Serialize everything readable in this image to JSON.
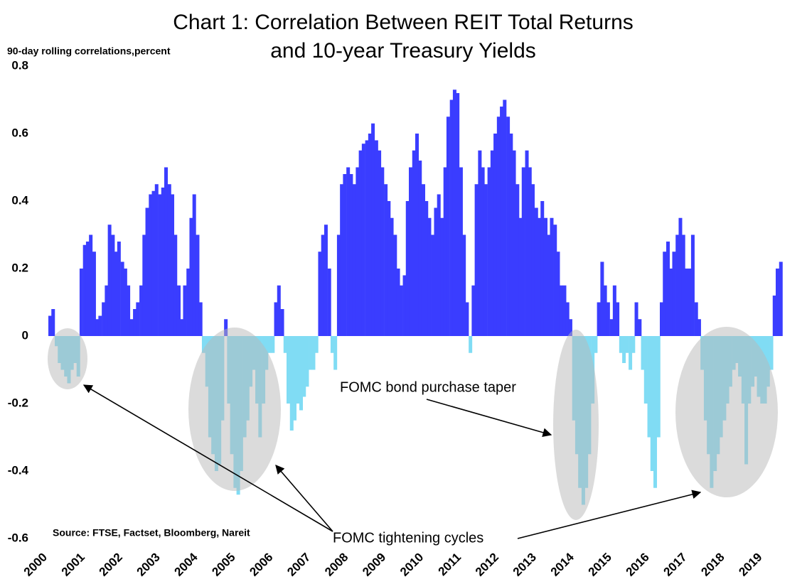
{
  "chart_data": {
    "type": "bar",
    "title": [
      "Chart 1: Correlation Between REIT Total Returns",
      "and 10-year Treasury Yields"
    ],
    "y_axis_label": "90-day rolling correlations,percent",
    "source": "Source: FTSE, Factset, Bloomberg, Nareit",
    "annotations": [
      "FOMC bond purchase taper",
      "FOMC tightening cycles"
    ],
    "positive_color": "#3a3dff",
    "negative_color": "#80dcf4",
    "xlim": [
      2000,
      2019.5
    ],
    "xticks": [
      2000,
      2001,
      2002,
      2003,
      2004,
      2005,
      2006,
      2007,
      2008,
      2009,
      2010,
      2011,
      2012,
      2013,
      2014,
      2015,
      2016,
      2017,
      2018,
      2019
    ],
    "ylim": [
      -0.6,
      0.8
    ],
    "yticks": [
      0.8,
      0.6,
      0.4,
      0.2,
      0,
      -0.2,
      -0.4,
      -0.6
    ],
    "x": [
      2000,
      2000.08,
      2000.17,
      2000.25,
      2000.33,
      2000.42,
      2000.5,
      2000.58,
      2000.67,
      2000.75,
      2000.83,
      2000.92,
      2001,
      2001.08,
      2001.17,
      2001.25,
      2001.33,
      2001.42,
      2001.5,
      2001.58,
      2001.67,
      2001.75,
      2001.83,
      2001.92,
      2002,
      2002.08,
      2002.17,
      2002.25,
      2002.33,
      2002.42,
      2002.5,
      2002.58,
      2002.67,
      2002.75,
      2002.83,
      2002.92,
      2003,
      2003.08,
      2003.17,
      2003.25,
      2003.33,
      2003.42,
      2003.5,
      2003.58,
      2003.67,
      2003.75,
      2003.83,
      2003.92,
      2004,
      2004.08,
      2004.17,
      2004.25,
      2004.33,
      2004.42,
      2004.5,
      2004.58,
      2004.67,
      2004.75,
      2004.83,
      2004.92,
      2005,
      2005.08,
      2005.17,
      2005.25,
      2005.33,
      2005.42,
      2005.5,
      2005.58,
      2005.67,
      2005.75,
      2005.83,
      2005.92,
      2006,
      2006.08,
      2006.17,
      2006.25,
      2006.33,
      2006.42,
      2006.5,
      2006.58,
      2006.67,
      2006.75,
      2006.83,
      2006.92,
      2007,
      2007.08,
      2007.17,
      2007.25,
      2007.33,
      2007.42,
      2007.5,
      2007.58,
      2007.67,
      2007.75,
      2007.83,
      2007.92,
      2008,
      2008.08,
      2008.17,
      2008.25,
      2008.33,
      2008.42,
      2008.5,
      2008.58,
      2008.67,
      2008.75,
      2008.83,
      2008.92,
      2009,
      2009.08,
      2009.17,
      2009.25,
      2009.33,
      2009.42,
      2009.5,
      2009.58,
      2009.67,
      2009.75,
      2009.83,
      2009.92,
      2010,
      2010.08,
      2010.17,
      2010.25,
      2010.33,
      2010.42,
      2010.5,
      2010.58,
      2010.67,
      2010.75,
      2010.83,
      2010.92,
      2011,
      2011.08,
      2011.17,
      2011.25,
      2011.33,
      2011.42,
      2011.5,
      2011.58,
      2011.67,
      2011.75,
      2011.83,
      2011.92,
      2012,
      2012.08,
      2012.17,
      2012.25,
      2012.33,
      2012.42,
      2012.5,
      2012.58,
      2012.67,
      2012.75,
      2012.83,
      2012.92,
      2013,
      2013.08,
      2013.17,
      2013.25,
      2013.33,
      2013.42,
      2013.5,
      2013.58,
      2013.67,
      2013.75,
      2013.83,
      2013.92,
      2014,
      2014.08,
      2014.17,
      2014.25,
      2014.33,
      2014.42,
      2014.5,
      2014.58,
      2014.67,
      2014.75,
      2014.83,
      2014.92,
      2015,
      2015.08,
      2015.17,
      2015.25,
      2015.33,
      2015.42,
      2015.5,
      2015.58,
      2015.67,
      2015.75,
      2015.83,
      2015.92,
      2016,
      2016.08,
      2016.17,
      2016.25,
      2016.33,
      2016.42,
      2016.5,
      2016.58,
      2016.67,
      2016.75,
      2016.83,
      2016.92,
      2017,
      2017.08,
      2017.17,
      2017.25,
      2017.33,
      2017.42,
      2017.5,
      2017.58,
      2017.67,
      2017.75,
      2017.83,
      2017.92,
      2018,
      2018.08,
      2018.17,
      2018.25,
      2018.33,
      2018.42,
      2018.5,
      2018.58,
      2018.67,
      2018.75,
      2018.83,
      2018.92,
      2019,
      2019.08,
      2019.17,
      2019.25,
      2019.33,
      2019.42
    ],
    "values": [
      0.06,
      0.08,
      -0.03,
      -0.08,
      -0.1,
      -0.12,
      -0.14,
      -0.1,
      -0.08,
      -0.12,
      0.2,
      0.27,
      0.28,
      0.3,
      0.25,
      0.05,
      0.06,
      0.1,
      0.15,
      0.33,
      0.3,
      0.25,
      0.28,
      0.22,
      0.2,
      0.15,
      0.05,
      0.08,
      0.1,
      0.15,
      0.3,
      0.38,
      0.42,
      0.43,
      0.45,
      0.42,
      0.44,
      0.5,
      0.45,
      0.42,
      0.3,
      0.15,
      0.05,
      0.15,
      0.2,
      0.35,
      0.42,
      0.3,
      0.1,
      -0.05,
      -0.15,
      -0.3,
      -0.35,
      -0.4,
      -0.38,
      -0.25,
      0.05,
      -0.2,
      -0.35,
      -0.45,
      -0.47,
      -0.4,
      -0.3,
      -0.25,
      -0.15,
      -0.1,
      -0.2,
      -0.3,
      -0.2,
      -0.1,
      -0.05,
      -0.05,
      0.1,
      0.15,
      0.08,
      -0.05,
      -0.2,
      -0.28,
      -0.25,
      -0.2,
      -0.22,
      -0.18,
      -0.15,
      -0.1,
      -0.1,
      -0.05,
      0.25,
      0.3,
      0.33,
      0.2,
      -0.05,
      -0.1,
      0.3,
      0.45,
      0.48,
      0.5,
      0.48,
      0.45,
      0.5,
      0.55,
      0.57,
      0.58,
      0.6,
      0.63,
      0.58,
      0.55,
      0.5,
      0.45,
      0.4,
      0.35,
      0.3,
      0.2,
      0.15,
      0.18,
      0.4,
      0.5,
      0.55,
      0.6,
      0.52,
      0.45,
      0.4,
      0.35,
      0.3,
      0.38,
      0.42,
      0.35,
      0.5,
      0.65,
      0.7,
      0.73,
      0.72,
      0.5,
      0.3,
      0.1,
      -0.05,
      0.15,
      0.45,
      0.55,
      0.5,
      0.45,
      0.5,
      0.55,
      0.6,
      0.65,
      0.68,
      0.7,
      0.65,
      0.6,
      0.55,
      0.45,
      0.35,
      0.5,
      0.55,
      0.5,
      0.45,
      0.38,
      0.35,
      0.4,
      0.35,
      0.3,
      0.35,
      0.33,
      0.25,
      0.15,
      0.15,
      0.1,
      0.05,
      -0.25,
      -0.35,
      -0.45,
      -0.5,
      -0.45,
      -0.35,
      -0.2,
      -0.05,
      0.1,
      0.22,
      0.15,
      0.1,
      0.05,
      0.15,
      0.1,
      -0.05,
      -0.08,
      -0.05,
      -0.1,
      -0.05,
      0.1,
      0.05,
      -0.1,
      -0.2,
      -0.3,
      -0.4,
      -0.45,
      -0.3,
      0.1,
      0.25,
      0.28,
      0.2,
      0.25,
      0.3,
      0.35,
      0.3,
      0.2,
      0.2,
      0.3,
      0.1,
      0.05,
      -0.1,
      -0.25,
      -0.35,
      -0.45,
      -0.4,
      -0.35,
      -0.3,
      -0.25,
      -0.2,
      -0.15,
      -0.1,
      -0.08,
      -0.12,
      -0.2,
      -0.38,
      -0.2,
      -0.15,
      -0.12,
      -0.18,
      -0.2,
      -0.2,
      -0.15,
      -0.1,
      0.12,
      0.2,
      0.22
    ]
  }
}
